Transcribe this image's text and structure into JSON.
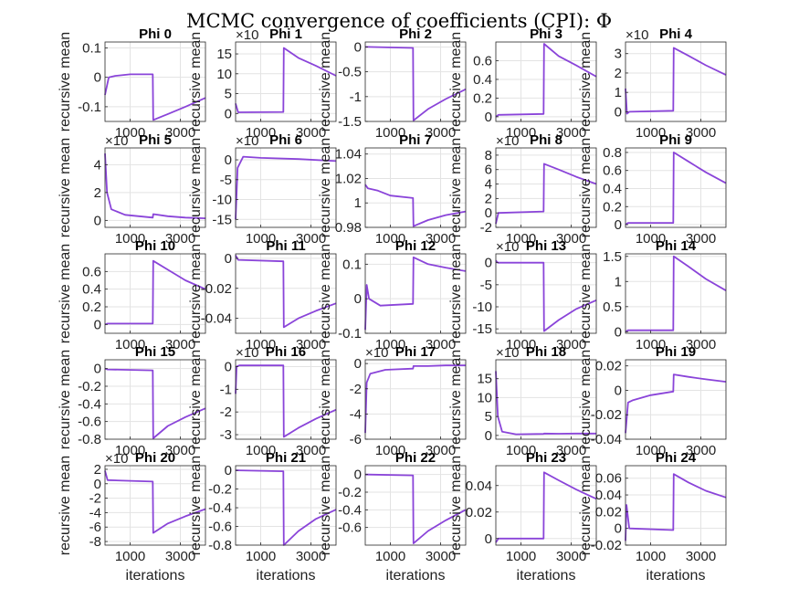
{
  "chart_data": {
    "type": "line",
    "title": "MCMC convergence of coefficients (CPI): Φ",
    "xlabel": "iterations",
    "ylabel": "recursive mean",
    "xlim": [
      0,
      4000
    ],
    "x_ticks": [
      1000,
      3000
    ],
    "grid": true,
    "line_color": "#8a44d9",
    "panels": [
      {
        "title": "Phi 0",
        "ylim": [
          -0.15,
          0.12
        ],
        "yticks": [
          "0.1",
          "0",
          "-0.1"
        ],
        "ytick_values": [
          0.1,
          0,
          -0.1
        ],
        "x": [
          0,
          150,
          400,
          1000,
          1900,
          1920,
          2500,
          3200,
          4000
        ],
        "y": [
          -0.06,
          0.0,
          0.005,
          0.01,
          0.01,
          -0.145,
          -0.125,
          -0.1,
          -0.07
        ]
      },
      {
        "title": "Phi 1",
        "exponent": "×10",
        "ylim": [
          -2,
          18
        ],
        "yticks": [
          "15",
          "10",
          "5",
          "0"
        ],
        "ytick_values": [
          15,
          10,
          5,
          0
        ],
        "x": [
          0,
          100,
          1900,
          1920,
          2500,
          3200,
          4000
        ],
        "y": [
          2.5,
          0.3,
          0.4,
          16.5,
          14,
          12,
          9.5
        ]
      },
      {
        "title": "Phi 2",
        "ylim": [
          -1.5,
          0.1
        ],
        "yticks": [
          "0",
          "-0.5",
          "-1",
          "-1.5"
        ],
        "ytick_values": [
          0,
          -0.5,
          -1,
          -1.5
        ],
        "x": [
          0,
          100,
          1900,
          1920,
          2500,
          3200,
          4000
        ],
        "y": [
          0.0,
          0.0,
          -0.02,
          -1.48,
          -1.25,
          -1.05,
          -0.85
        ]
      },
      {
        "title": "Phi 3",
        "ylim": [
          -0.05,
          0.8
        ],
        "yticks": [
          "0.6",
          "0.4",
          "0.2",
          "0"
        ],
        "ytick_values": [
          0.6,
          0.4,
          0.2,
          0
        ],
        "x": [
          0,
          100,
          1900,
          1920,
          2500,
          3200,
          4000
        ],
        "y": [
          0.0,
          0.02,
          0.03,
          0.78,
          0.65,
          0.55,
          0.43
        ]
      },
      {
        "title": "Phi 4",
        "exponent": "×10",
        "ylim": [
          -0.5,
          3.6
        ],
        "yticks": [
          "3",
          "2",
          "1",
          "0"
        ],
        "ytick_values": [
          3,
          2,
          1,
          0
        ],
        "x": [
          0,
          60,
          150,
          1900,
          1920,
          2500,
          3200,
          4000
        ],
        "y": [
          1.2,
          -0.1,
          0.0,
          0.05,
          3.3,
          2.9,
          2.4,
          1.9
        ]
      },
      {
        "title": "Phi 5",
        "exponent": "×10",
        "ylim": [
          -0.5,
          5.2
        ],
        "yticks": [
          "4",
          "2",
          "0"
        ],
        "ytick_values": [
          4,
          2,
          0
        ],
        "x": [
          0,
          80,
          250,
          800,
          1900,
          1920,
          2500,
          3200,
          4000
        ],
        "y": [
          4.8,
          2.0,
          0.8,
          0.4,
          0.2,
          0.45,
          0.3,
          0.2,
          0.15
        ]
      },
      {
        "title": "Phi 6",
        "exponent": "×10",
        "ylim": [
          -17,
          3
        ],
        "yticks": [
          "0",
          "-5",
          "-10",
          "-15"
        ],
        "ytick_values": [
          0,
          -5,
          -10,
          -15
        ],
        "x": [
          0,
          80,
          300,
          1000,
          2500,
          4000
        ],
        "y": [
          -15,
          -2,
          0.8,
          0.5,
          0.2,
          -0.3
        ]
      },
      {
        "title": "Phi 7",
        "ylim": [
          0.98,
          1.045
        ],
        "yticks": [
          "1.04",
          "1.02",
          "1",
          "0.98"
        ],
        "ytick_values": [
          1.04,
          1.02,
          1.0,
          0.98
        ],
        "x": [
          0,
          100,
          500,
          1000,
          1900,
          1920,
          2500,
          3200,
          4000
        ],
        "y": [
          1.015,
          1.012,
          1.01,
          1.006,
          1.004,
          0.981,
          0.986,
          0.99,
          0.993
        ]
      },
      {
        "title": "Phi 8",
        "exponent": "×10",
        "ylim": [
          -2,
          9
        ],
        "yticks": [
          "8",
          "6",
          "4",
          "2",
          "0",
          "-2"
        ],
        "ytick_values": [
          8,
          6,
          4,
          2,
          0,
          -2
        ],
        "x": [
          0,
          100,
          1900,
          1920,
          2500,
          3200,
          4000
        ],
        "y": [
          -1.5,
          0.0,
          0.2,
          6.8,
          6.0,
          5.0,
          4.0
        ]
      },
      {
        "title": "Phi 9",
        "ylim": [
          -0.03,
          0.85
        ],
        "yticks": [
          "0.8",
          "0.6",
          "0.4",
          "0.2",
          "0"
        ],
        "ytick_values": [
          0.8,
          0.6,
          0.4,
          0.2,
          0
        ],
        "x": [
          0,
          100,
          1900,
          1920,
          2500,
          3200,
          4000
        ],
        "y": [
          0.0,
          0.02,
          0.02,
          0.8,
          0.7,
          0.58,
          0.46
        ]
      },
      {
        "title": "Phi 10",
        "ylim": [
          -0.1,
          0.8
        ],
        "yticks": [
          "0.6",
          "0.4",
          "0.2",
          "0"
        ],
        "ytick_values": [
          0.6,
          0.4,
          0.2,
          0
        ],
        "x": [
          0,
          100,
          1900,
          1920,
          2500,
          3200,
          4000
        ],
        "y": [
          0.0,
          0.01,
          0.01,
          0.72,
          0.62,
          0.5,
          0.4
        ]
      },
      {
        "title": "Phi 11",
        "ylim": [
          -0.05,
          0.003
        ],
        "yticks": [
          "0",
          "-0.02",
          "-0.04"
        ],
        "ytick_values": [
          0,
          -0.02,
          -0.04
        ],
        "x": [
          0,
          100,
          1900,
          1920,
          2500,
          3200,
          4000
        ],
        "y": [
          0.002,
          -0.001,
          -0.002,
          -0.046,
          -0.04,
          -0.035,
          -0.03
        ]
      },
      {
        "title": "Phi 12",
        "ylim": [
          -0.1,
          0.13
        ],
        "yticks": [
          "0.1",
          "0",
          "-0.1"
        ],
        "ytick_values": [
          0.1,
          0,
          -0.1
        ],
        "x": [
          0,
          60,
          150,
          600,
          1900,
          1920,
          2500,
          3200,
          4000
        ],
        "y": [
          -0.09,
          0.04,
          0.0,
          -0.02,
          -0.015,
          0.12,
          0.1,
          0.09,
          0.08
        ]
      },
      {
        "title": "Phi 13",
        "exponent": "×10",
        "ylim": [
          -16,
          2
        ],
        "yticks": [
          "0",
          "-5",
          "-10",
          "-15"
        ],
        "ytick_values": [
          0,
          -5,
          -10,
          -15
        ],
        "x": [
          0,
          80,
          1900,
          1920,
          2500,
          3200,
          4000
        ],
        "y": [
          0.5,
          0.0,
          0.0,
          -15.5,
          -13,
          -10.5,
          -8.5
        ]
      },
      {
        "title": "Phi 14",
        "ylim": [
          -0.03,
          1.55
        ],
        "yticks": [
          "1.5",
          "1",
          "0.5",
          "0"
        ],
        "ytick_values": [
          1.5,
          1,
          0.5,
          0
        ],
        "x": [
          0,
          100,
          1900,
          1920,
          2500,
          3200,
          4000
        ],
        "y": [
          0.0,
          0.03,
          0.03,
          1.5,
          1.3,
          1.05,
          0.82
        ]
      },
      {
        "title": "Phi 15",
        "ylim": [
          -0.8,
          0.1
        ],
        "yticks": [
          "0",
          "-0.2",
          "-0.4",
          "-0.6",
          "-0.8"
        ],
        "ytick_values": [
          0,
          -0.2,
          -0.4,
          -0.6,
          -0.8
        ],
        "x": [
          0,
          100,
          1900,
          1920,
          2500,
          3200,
          4000
        ],
        "y": [
          0.0,
          -0.01,
          -0.02,
          -0.79,
          -0.65,
          -0.55,
          -0.45
        ]
      },
      {
        "title": "Phi 16",
        "exponent": "×10",
        "ylim": [
          -3.2,
          0.3
        ],
        "yticks": [
          "0",
          "-1",
          "-2",
          "-3"
        ],
        "ytick_values": [
          0,
          -1,
          -2,
          -3
        ],
        "x": [
          0,
          40,
          150,
          1900,
          1920,
          2500,
          3200,
          4000
        ],
        "y": [
          -1.2,
          0.0,
          0.05,
          0.05,
          -3.1,
          -2.7,
          -2.3,
          -1.9
        ]
      },
      {
        "title": "Phi 17",
        "exponent": "×10",
        "ylim": [
          -6,
          0.3
        ],
        "yticks": [
          "0",
          "-2",
          "-4",
          "-6"
        ],
        "ytick_values": [
          0,
          -2,
          -4,
          -6
        ],
        "x": [
          0,
          60,
          200,
          800,
          1900,
          1920,
          2500,
          3200,
          4000
        ],
        "y": [
          -5.5,
          -1.5,
          -0.8,
          -0.5,
          -0.4,
          -0.2,
          -0.2,
          -0.15,
          -0.15
        ]
      },
      {
        "title": "Phi 18",
        "exponent": "×10",
        "ylim": [
          -1,
          20
        ],
        "yticks": [
          "15",
          "10",
          "5",
          "0"
        ],
        "ytick_values": [
          15,
          10,
          5,
          0
        ],
        "x": [
          0,
          80,
          250,
          800,
          1900,
          1920,
          2500,
          3200,
          4000
        ],
        "y": [
          17,
          5,
          1,
          0.3,
          0.4,
          0.5,
          0.45,
          0.5,
          0.5
        ]
      },
      {
        "title": "Phi 19",
        "ylim": [
          -0.04,
          0.025
        ],
        "yticks": [
          "0.02",
          "0",
          "-0.02",
          "-0.04"
        ],
        "ytick_values": [
          0.02,
          0,
          -0.02,
          -0.04
        ],
        "x": [
          0,
          100,
          300,
          1000,
          1900,
          1920,
          2500,
          3200,
          4000
        ],
        "y": [
          -0.035,
          -0.01,
          -0.008,
          -0.004,
          -0.001,
          0.013,
          0.011,
          0.009,
          0.007
        ]
      },
      {
        "title": "Phi 20",
        "exponent": "×10",
        "ylim": [
          -8.5,
          2.5
        ],
        "yticks": [
          "2",
          "0",
          "-2",
          "-4",
          "-6",
          "-8"
        ],
        "ytick_values": [
          2,
          0,
          -2,
          -4,
          -6,
          -8
        ],
        "x": [
          0,
          100,
          1900,
          1920,
          2500,
          3200,
          4000
        ],
        "y": [
          1.8,
          0.5,
          0.3,
          -6.8,
          -5.5,
          -4.5,
          -3.5
        ]
      },
      {
        "title": "Phi 21",
        "ylim": [
          -0.8,
          0.05
        ],
        "yticks": [
          "0",
          "-0.2",
          "-0.4",
          "-0.6",
          "-0.8"
        ],
        "ytick_values": [
          0,
          -0.2,
          -0.4,
          -0.6,
          -0.8
        ],
        "x": [
          0,
          100,
          1900,
          1920,
          2500,
          3200,
          4000
        ],
        "y": [
          0.0,
          0.0,
          -0.01,
          -0.8,
          -0.65,
          -0.52,
          -0.42
        ]
      },
      {
        "title": "Phi 22",
        "ylim": [
          -0.8,
          0.1
        ],
        "yticks": [
          "0",
          "-0.2",
          "-0.4",
          "-0.6"
        ],
        "ytick_values": [
          0,
          -0.2,
          -0.4,
          -0.6
        ],
        "x": [
          0,
          100,
          1900,
          1920,
          2500,
          3200,
          4000
        ],
        "y": [
          0.0,
          0.0,
          -0.01,
          -0.78,
          -0.64,
          -0.52,
          -0.4
        ]
      },
      {
        "title": "Phi 23",
        "ylim": [
          -0.005,
          0.055
        ],
        "yticks": [
          "0.04",
          "0.02",
          "0"
        ],
        "ytick_values": [
          0.04,
          0.02,
          0
        ],
        "x": [
          0,
          100,
          1900,
          1920,
          2500,
          3200,
          4000
        ],
        "y": [
          -0.003,
          0.0,
          0.0,
          0.05,
          0.044,
          0.037,
          0.03
        ]
      },
      {
        "title": "Phi 24",
        "ylim": [
          -0.02,
          0.075
        ],
        "yticks": [
          "0.06",
          "0.04",
          "0.02",
          "0",
          "-0.02"
        ],
        "ytick_values": [
          0.06,
          0.04,
          0.02,
          0,
          -0.02
        ],
        "x": [
          0,
          40,
          150,
          1900,
          1920,
          2500,
          3200,
          4000
        ],
        "y": [
          -0.015,
          0.028,
          0.0,
          -0.002,
          0.065,
          0.055,
          0.045,
          0.037
        ]
      }
    ]
  }
}
